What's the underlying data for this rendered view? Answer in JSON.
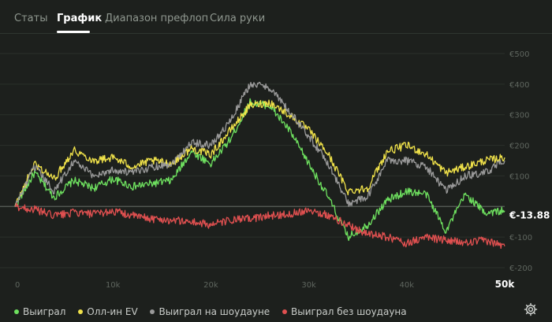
{
  "tabs": [
    {
      "label": "Статы",
      "active": false
    },
    {
      "label": "График",
      "active": true
    },
    {
      "label": "Диапазон префлоп",
      "active": false
    },
    {
      "label": "Сила руки",
      "active": false
    }
  ],
  "current_value_label": "€-13.88",
  "settings_icon": "gear-icon",
  "chart_data": {
    "type": "line",
    "x": [
      0,
      2000,
      4000,
      6000,
      8000,
      10000,
      12000,
      14000,
      16000,
      18000,
      20000,
      22000,
      24000,
      26000,
      28000,
      30000,
      32000,
      34000,
      36000,
      38000,
      40000,
      42000,
      44000,
      46000,
      48000,
      50000
    ],
    "x_ticks": [
      "0",
      "10k",
      "20k",
      "30k",
      "40k",
      "50k"
    ],
    "y_ticks": [
      "€500",
      "€400",
      "€300",
      "€200",
      "€100",
      "€-100",
      "€-200"
    ],
    "ylim": [
      -200,
      500
    ],
    "xlim": [
      0,
      50000
    ],
    "grid": true,
    "legend": "bottom-left",
    "series": [
      {
        "name": "Выиграл",
        "color": "#6ee05f",
        "values": [
          0,
          110,
          30,
          85,
          60,
          90,
          65,
          75,
          85,
          180,
          140,
          220,
          340,
          330,
          250,
          140,
          30,
          -100,
          -60,
          20,
          50,
          40,
          -80,
          40,
          -20,
          -13.88
        ]
      },
      {
        "name": "Олл-ин EV",
        "color": "#f0e24a",
        "values": [
          0,
          140,
          90,
          185,
          150,
          160,
          130,
          150,
          140,
          190,
          170,
          250,
          330,
          340,
          300,
          250,
          170,
          50,
          60,
          180,
          200,
          170,
          110,
          130,
          150,
          160
        ]
      },
      {
        "name": "Выиграл на шоудауне",
        "color": "#9a9a9a",
        "values": [
          0,
          130,
          50,
          150,
          100,
          120,
          110,
          130,
          140,
          210,
          200,
          280,
          400,
          390,
          310,
          230,
          140,
          10,
          30,
          150,
          150,
          130,
          50,
          100,
          110,
          150
        ]
      },
      {
        "name": "Выиграл без шоудауна",
        "color": "#e05050",
        "values": [
          0,
          -10,
          -30,
          -20,
          -25,
          -15,
          -30,
          -40,
          -45,
          -50,
          -60,
          -45,
          -40,
          -30,
          -25,
          -10,
          -30,
          -60,
          -90,
          -100,
          -120,
          -100,
          -110,
          -120,
          -110,
          -130
        ]
      }
    ]
  }
}
